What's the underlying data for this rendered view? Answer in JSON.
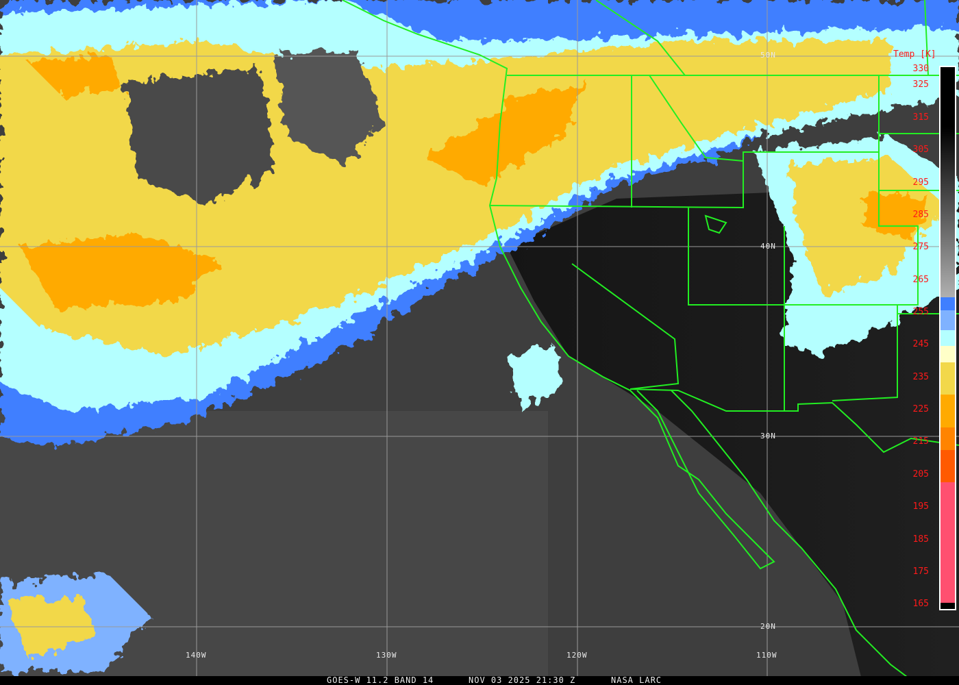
{
  "colorbar": {
    "title": "Temp [K]",
    "ticks": [
      "330",
      "325",
      "315",
      "305",
      "295",
      "285",
      "275",
      "265",
      "255",
      "245",
      "235",
      "225",
      "215",
      "205",
      "195",
      "185",
      "175",
      "165"
    ],
    "range_k": [
      164,
      331
    ],
    "gray_from_k": 330,
    "gray_to_k": 260,
    "segments": [
      {
        "from": 260,
        "to": 256,
        "color": "#3f7fff"
      },
      {
        "from": 256,
        "to": 250,
        "color": "#7fb2ff"
      },
      {
        "from": 250,
        "to": 245,
        "color": "#b4ffff"
      },
      {
        "from": 245,
        "to": 240,
        "color": "#ffffc8"
      },
      {
        "from": 240,
        "to": 230,
        "color": "#f2d84a"
      },
      {
        "from": 230,
        "to": 220,
        "color": "#ffaa00"
      },
      {
        "from": 220,
        "to": 213,
        "color": "#ff8400"
      },
      {
        "from": 213,
        "to": 203,
        "color": "#ff5a00"
      },
      {
        "from": 203,
        "to": 166,
        "color": "#ff5070"
      },
      {
        "from": 166,
        "to": 164,
        "color": "#000000"
      }
    ]
  },
  "grid": {
    "latitudes": [
      "50N",
      "40N",
      "30N",
      "20N"
    ],
    "longitudes": [
      "140W",
      "130W",
      "120W",
      "110W"
    ]
  },
  "caption": {
    "satellite": "GOES-W 11.2 BAND 14",
    "datetime": "NOV 03 2025 21:30 Z",
    "source": "NASA LARC"
  },
  "colors": {
    "boundaries": "#22ee22",
    "grid": "#9a9a9a",
    "labels": "#ff1a1a"
  }
}
